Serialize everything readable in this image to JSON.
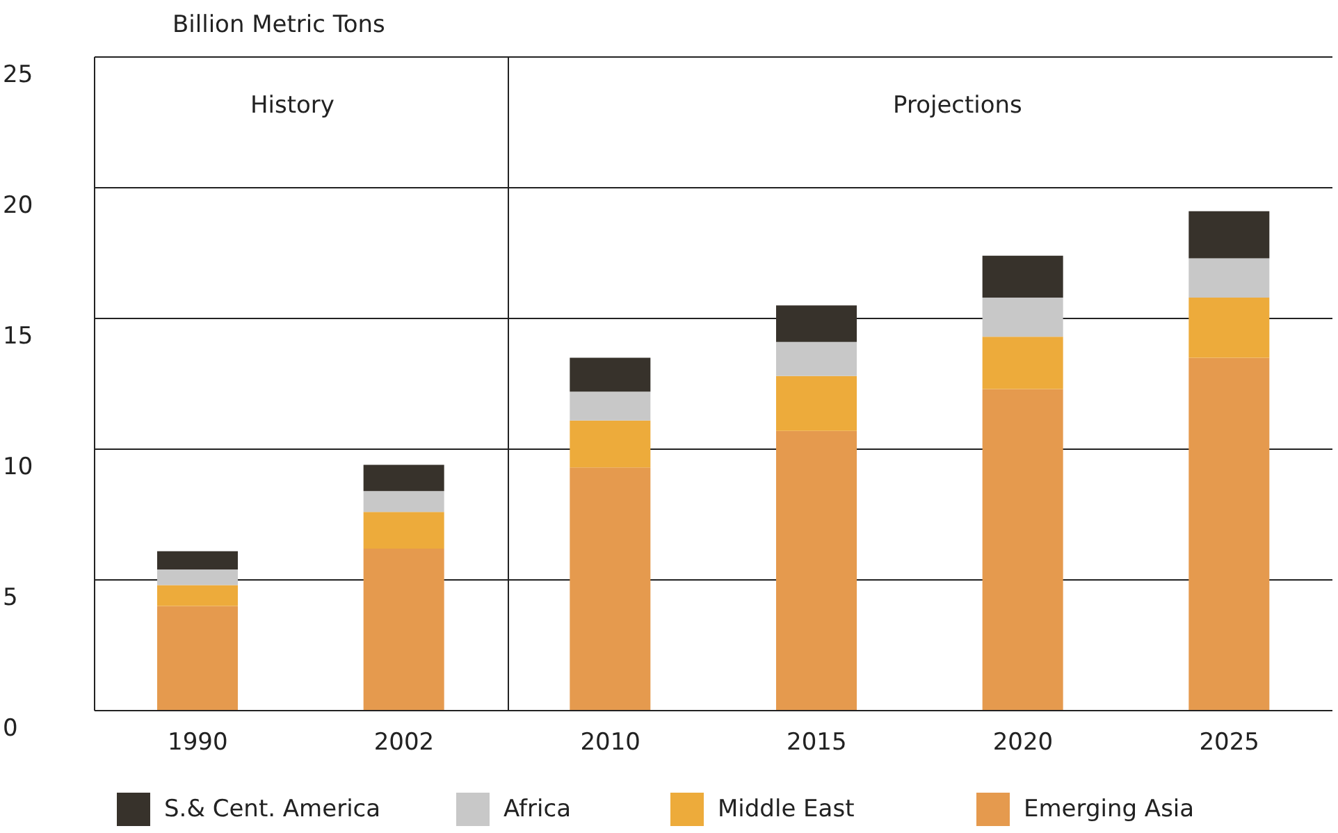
{
  "chart_data": {
    "type": "bar",
    "ylabel": "Billion Metric Tons",
    "categories": [
      "1990",
      "2002",
      "2010",
      "2015",
      "2020",
      "2025"
    ],
    "series": [
      {
        "name": "Emerging Asia",
        "color": "#e59a4e",
        "values": [
          4.0,
          6.2,
          9.3,
          10.7,
          12.3,
          13.5
        ]
      },
      {
        "name": "Middle East",
        "color": "#edab3b",
        "values": [
          0.8,
          1.4,
          1.8,
          2.1,
          2.0,
          2.3
        ]
      },
      {
        "name": "Africa",
        "color": "#c8c8c8",
        "values": [
          0.6,
          0.8,
          1.1,
          1.3,
          1.5,
          1.5
        ]
      },
      {
        "name": "S.& Cent. America",
        "color": "#37322b",
        "values": [
          0.7,
          1.0,
          1.3,
          1.4,
          1.6,
          1.8
        ]
      }
    ],
    "stacked": true,
    "ylim": [
      0,
      25
    ],
    "yticks": [
      0,
      5,
      10,
      15,
      20,
      25
    ],
    "grid": "y",
    "legend": "bottom",
    "annotations": [
      "History",
      "Projections"
    ]
  }
}
